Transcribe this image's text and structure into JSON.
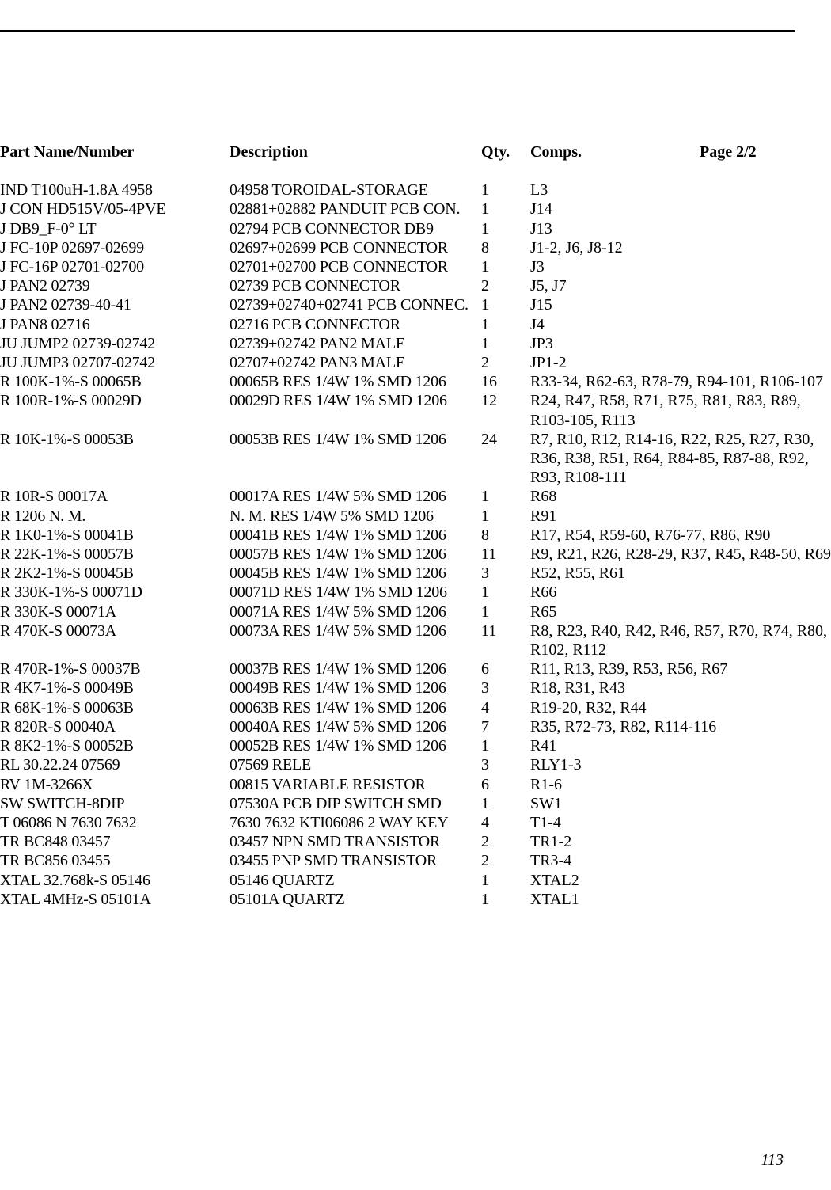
{
  "page": {
    "headers": {
      "part": "Part Name/Number",
      "desc": "Description",
      "qty": "Qty.",
      "comps": "Comps.",
      "page": "Page 2/2"
    },
    "footerPageNumber": "113",
    "typography": {
      "fontFamily": "Times New Roman",
      "bodyFontSizePt": 15,
      "headerBold": true,
      "footerItalic": true,
      "textColor": "#000000",
      "backgroundColor": "#ffffff",
      "topRuleColor": "#000000",
      "topRuleWidthPx": 2
    },
    "columns": {
      "partWidthPx": 290,
      "descWidthPx": 318,
      "qtyWidthPx": 62,
      "pageWidthPx": 120
    },
    "rows": [
      {
        "part": "IND T100uH-1.8A 4958",
        "desc": "04958 TOROIDAL-STORAGE",
        "qty": "1",
        "comps": "L3"
      },
      {
        "part": "J CON HD515V/05-4PVE",
        "desc": "02881+02882 PANDUIT PCB CON.",
        "qty": "1",
        "comps": "J14"
      },
      {
        "part": "J DB9_F-0° LT",
        "desc": "02794 PCB CONNECTOR DB9",
        "qty": "1",
        "comps": "J13"
      },
      {
        "part": "J FC-10P 02697-02699",
        "desc": "02697+02699 PCB CONNECTOR",
        "qty": "8",
        "comps": "J1-2, J6, J8-12"
      },
      {
        "part": "J FC-16P 02701-02700",
        "desc": "02701+02700 PCB CONNECTOR",
        "qty": "1",
        "comps": "J3"
      },
      {
        "part": "J PAN2 02739",
        "desc": "02739 PCB CONNECTOR",
        "qty": "2",
        "comps": "J5, J7"
      },
      {
        "part": "J PAN2 02739-40-41",
        "desc": "02739+02740+02741 PCB CONNEC.",
        "qty": "1",
        "comps": "J15"
      },
      {
        "part": "J PAN8 02716",
        "desc": "02716 PCB CONNECTOR",
        "qty": "1",
        "comps": "J4"
      },
      {
        "part": "JU JUMP2 02739-02742",
        "desc": "02739+02742 PAN2 MALE",
        "qty": "1",
        "comps": "JP3"
      },
      {
        "part": "JU JUMP3 02707-02742",
        "desc": "02707+02742 PAN3 MALE",
        "qty": "2",
        "comps": "JP1-2"
      },
      {
        "part": "R 100K-1%-S 00065B",
        "desc": "00065B RES 1/4W 1% SMD 1206",
        "qty": "16",
        "comps": "R33-34, R62-63, R78-79, R94-101, R106-107"
      },
      {
        "part": "R 100R-1%-S 00029D",
        "desc": "00029D RES 1/4W 1% SMD 1206",
        "qty": "12",
        "comps": "R24, R47, R58, R71, R75, R81, R83, R89,"
      },
      {
        "part": "",
        "desc": "",
        "qty": "",
        "comps": "R103-105, R113"
      },
      {
        "part": "R 10K-1%-S 00053B",
        "desc": "00053B RES 1/4W 1% SMD 1206",
        "qty": "24",
        "comps": "R7, R10, R12, R14-16, R22, R25, R27, R30,"
      },
      {
        "part": "",
        "desc": "",
        "qty": "",
        "comps": "R36, R38, R51, R64, R84-85, R87-88, R92,"
      },
      {
        "part": "",
        "desc": "",
        "qty": "",
        "comps": "R93, R108-111"
      },
      {
        "part": "R 10R-S 00017A",
        "desc": "00017A RES 1/4W 5% SMD 1206",
        "qty": "1",
        "comps": "R68"
      },
      {
        "part": "R 1206 N. M.",
        "desc": "N. M. RES 1/4W 5% SMD 1206",
        "qty": "1",
        "comps": "R91"
      },
      {
        "part": "R 1K0-1%-S 00041B",
        "desc": "00041B RES 1/4W 1% SMD 1206",
        "qty": "8",
        "comps": "R17, R54, R59-60, R76-77, R86, R90"
      },
      {
        "part": "R 22K-1%-S 00057B",
        "desc": "00057B RES 1/4W 1% SMD 1206",
        "qty": "11",
        "comps": "R9, R21, R26, R28-29, R37, R45, R48-50, R69"
      },
      {
        "part": "R 2K2-1%-S 00045B",
        "desc": "00045B RES 1/4W 1% SMD 1206",
        "qty": "3",
        "comps": "R52, R55, R61"
      },
      {
        "part": "R 330K-1%-S 00071D",
        "desc": "00071D RES 1/4W 1% SMD 1206",
        "qty": "1",
        "comps": "R66"
      },
      {
        "part": "R 330K-S 00071A",
        "desc": "00071A RES 1/4W 5% SMD 1206",
        "qty": "1",
        "comps": "R65"
      },
      {
        "part": "R 470K-S 00073A",
        "desc": "00073A RES 1/4W 5% SMD 1206",
        "qty": "11",
        "comps": "R8, R23, R40, R42, R46, R57, R70, R74, R80,"
      },
      {
        "part": "",
        "desc": "",
        "qty": "",
        "comps": "R102, R112"
      },
      {
        "part": "R 470R-1%-S 00037B",
        "desc": "00037B RES 1/4W 1% SMD 1206",
        "qty": "6",
        "comps": "R11, R13, R39, R53, R56, R67"
      },
      {
        "part": "R 4K7-1%-S 00049B",
        "desc": "00049B RES 1/4W 1% SMD 1206",
        "qty": "3",
        "comps": "R18, R31, R43"
      },
      {
        "part": "R 68K-1%-S 00063B",
        "desc": "00063B RES 1/4W 1% SMD 1206",
        "qty": "4",
        "comps": "R19-20, R32, R44"
      },
      {
        "part": "R 820R-S 00040A",
        "desc": "00040A RES 1/4W 5% SMD 1206",
        "qty": "7",
        "comps": "R35, R72-73, R82, R114-116"
      },
      {
        "part": "R 8K2-1%-S 00052B",
        "desc": "00052B RES 1/4W 1% SMD 1206",
        "qty": "1",
        "comps": "R41"
      },
      {
        "part": "RL 30.22.24 07569",
        "desc": "07569 RELE",
        "qty": "3",
        "comps": "RLY1-3"
      },
      {
        "part": "RV 1M-3266X",
        "desc": "00815 VARIABLE RESISTOR",
        "qty": "6",
        "comps": "R1-6"
      },
      {
        "part": "SW SWITCH-8DIP",
        "desc": "07530A PCB DIP SWITCH SMD",
        "qty": "1",
        "comps": "SW1"
      },
      {
        "part": "T 06086 N 7630 7632",
        "desc": "7630 7632 KTI06086 2 WAY KEY",
        "qty": "4",
        "comps": "T1-4"
      },
      {
        "part": "TR BC848 03457",
        "desc": "03457 NPN SMD TRANSISTOR",
        "qty": "2",
        "comps": "TR1-2"
      },
      {
        "part": "TR BC856 03455",
        "desc": "03455 PNP SMD TRANSISTOR",
        "qty": "2",
        "comps": "TR3-4"
      },
      {
        "part": "XTAL 32.768k-S 05146",
        "desc": "05146 QUARTZ",
        "qty": "1",
        "comps": "XTAL2"
      },
      {
        "part": "XTAL 4MHz-S 05101A",
        "desc": "05101A QUARTZ",
        "qty": "1",
        "comps": "XTAL1"
      }
    ]
  }
}
